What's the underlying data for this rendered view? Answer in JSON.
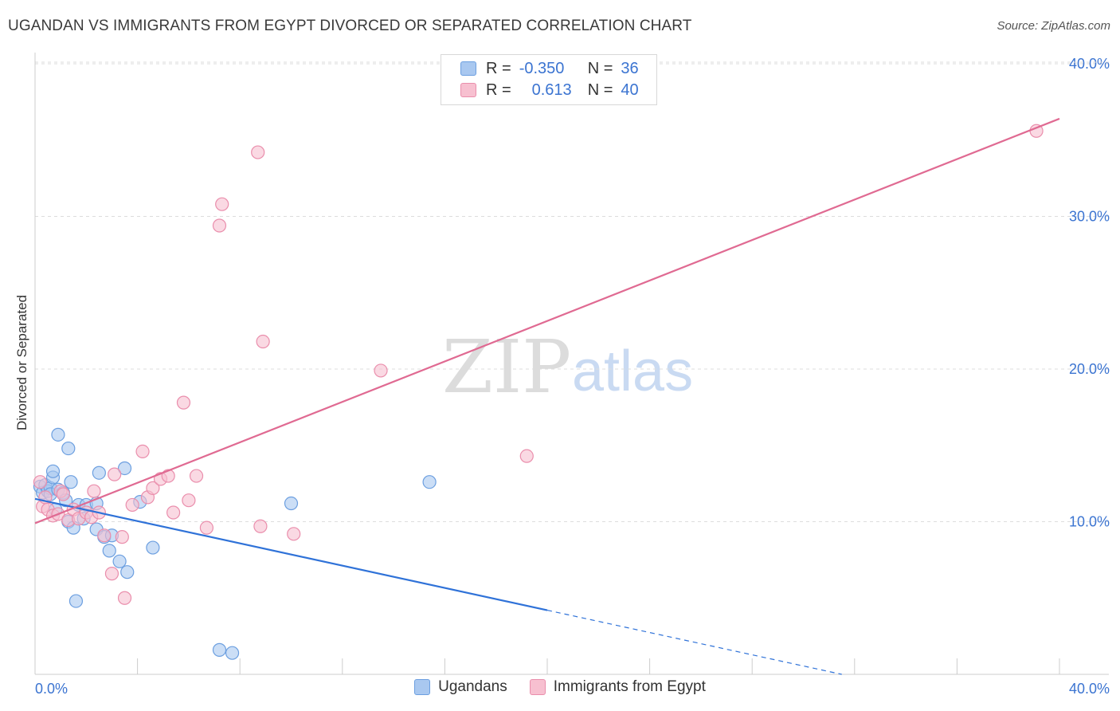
{
  "title": "UGANDAN VS IMMIGRANTS FROM EGYPT DIVORCED OR SEPARATED CORRELATION CHART",
  "source": "Source: ZipAtlas.com",
  "watermark": {
    "zip": "ZIP",
    "atlas": "atlas"
  },
  "legend": {
    "rows": [
      {
        "r_label": "R =",
        "r_value": "-0.350",
        "n_label": "N =",
        "n_value": "36",
        "color": "#a9c8f0",
        "edge": "#6c9fe0"
      },
      {
        "r_label": "R =",
        "r_value": "0.613",
        "n_label": "N =",
        "n_value": "40",
        "color": "#f7c0d0",
        "edge": "#ea8eac"
      }
    ]
  },
  "bottom_legend": {
    "items": [
      {
        "label": "Ugandans",
        "color": "#a9c8f0",
        "edge": "#6c9fe0"
      },
      {
        "label": "Immigrants from Egypt",
        "color": "#f7c0d0",
        "edge": "#ea8eac"
      }
    ]
  },
  "chart_data": {
    "type": "scatter",
    "title": "UGANDAN VS IMMIGRANTS FROM EGYPT DIVORCED OR SEPARATED CORRELATION CHART",
    "xlabel": "",
    "ylabel": "Divorced or Separated",
    "xlim": [
      0,
      40
    ],
    "ylim": [
      0,
      40
    ],
    "x_tick_labels": [
      "0.0%",
      "40.0%"
    ],
    "y_ticks": [
      10,
      20,
      30,
      40
    ],
    "y_tick_labels": [
      "10.0%",
      "20.0%",
      "30.0%",
      "40.0%"
    ],
    "grid": true,
    "legend_position": "top-center",
    "series": [
      {
        "name": "Ugandans",
        "color": "#6c9fe0",
        "fill": "#a9c8f0",
        "points": [
          [
            0.2,
            12.3
          ],
          [
            0.3,
            11.9
          ],
          [
            0.4,
            12.4
          ],
          [
            0.5,
            12.0
          ],
          [
            0.6,
            12.2
          ],
          [
            0.6,
            11.8
          ],
          [
            0.7,
            12.9
          ],
          [
            0.7,
            13.3
          ],
          [
            0.8,
            10.8
          ],
          [
            0.9,
            12.1
          ],
          [
            0.9,
            15.7
          ],
          [
            1.1,
            11.9
          ],
          [
            1.2,
            11.4
          ],
          [
            1.3,
            10.0
          ],
          [
            1.3,
            14.8
          ],
          [
            1.4,
            12.6
          ],
          [
            1.5,
            9.6
          ],
          [
            1.7,
            11.1
          ],
          [
            1.9,
            10.2
          ],
          [
            2.0,
            11.1
          ],
          [
            2.4,
            11.2
          ],
          [
            2.4,
            9.5
          ],
          [
            2.5,
            13.2
          ],
          [
            2.7,
            9.0
          ],
          [
            2.9,
            8.1
          ],
          [
            3.0,
            9.1
          ],
          [
            3.3,
            7.4
          ],
          [
            3.5,
            13.5
          ],
          [
            3.6,
            6.7
          ],
          [
            4.1,
            11.3
          ],
          [
            4.6,
            8.3
          ],
          [
            1.6,
            4.8
          ],
          [
            7.2,
            1.6
          ],
          [
            7.7,
            1.4
          ],
          [
            10.0,
            11.2
          ],
          [
            15.4,
            12.6
          ]
        ]
      },
      {
        "name": "Immigrants from Egypt",
        "color": "#ea8eac",
        "fill": "#f7c0d0",
        "points": [
          [
            0.2,
            12.6
          ],
          [
            0.3,
            11.0
          ],
          [
            0.4,
            11.6
          ],
          [
            0.5,
            10.8
          ],
          [
            0.7,
            10.4
          ],
          [
            0.9,
            10.5
          ],
          [
            1.0,
            12.0
          ],
          [
            1.1,
            11.8
          ],
          [
            1.3,
            10.1
          ],
          [
            1.5,
            10.8
          ],
          [
            1.7,
            10.2
          ],
          [
            2.0,
            10.6
          ],
          [
            2.2,
            10.3
          ],
          [
            2.3,
            12.0
          ],
          [
            2.5,
            10.6
          ],
          [
            2.7,
            9.1
          ],
          [
            3.0,
            6.6
          ],
          [
            3.1,
            13.1
          ],
          [
            3.4,
            9.0
          ],
          [
            3.5,
            5.0
          ],
          [
            3.8,
            11.1
          ],
          [
            4.2,
            14.6
          ],
          [
            4.4,
            11.6
          ],
          [
            4.6,
            12.2
          ],
          [
            4.9,
            12.8
          ],
          [
            5.2,
            13.0
          ],
          [
            5.4,
            10.6
          ],
          [
            5.8,
            17.8
          ],
          [
            6.0,
            11.4
          ],
          [
            6.3,
            13.0
          ],
          [
            6.7,
            9.6
          ],
          [
            7.2,
            29.4
          ],
          [
            7.3,
            30.8
          ],
          [
            8.7,
            34.2
          ],
          [
            8.8,
            9.7
          ],
          [
            8.9,
            21.8
          ],
          [
            10.1,
            9.2
          ],
          [
            13.5,
            19.9
          ],
          [
            19.2,
            14.3
          ],
          [
            39.1,
            35.6
          ]
        ]
      }
    ],
    "trend_lines": [
      {
        "series": "Ugandans",
        "x0": 0,
        "y0": 11.5,
        "x1": 20,
        "y1": 4.2,
        "dashed_to_x": 31.5,
        "dashed_to_y": 0.0
      },
      {
        "series": "Immigrants from Egypt",
        "x0": 0,
        "y0": 9.9,
        "x1": 40,
        "y1": 36.4
      }
    ]
  }
}
